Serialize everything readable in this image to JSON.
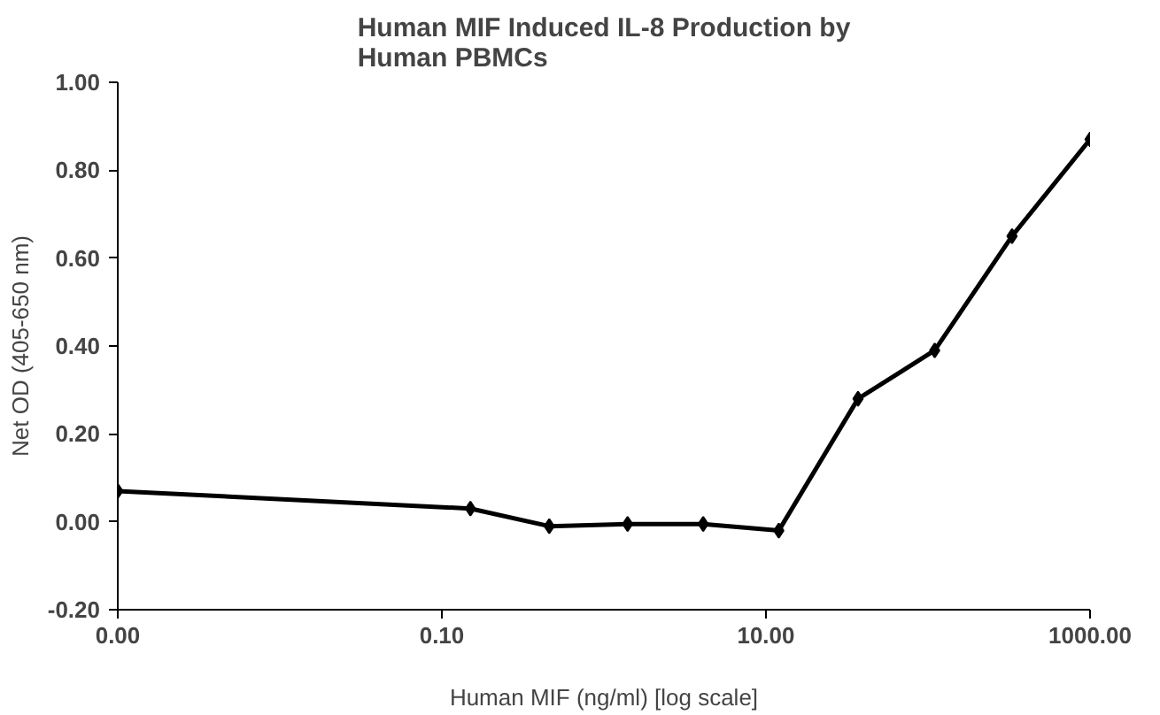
{
  "chart_data": {
    "type": "line",
    "title": "Human MIF Induced IL-8 Production by Human PBMCs",
    "xlabel": "Human MIF (ng/ml) [log scale]",
    "ylabel": "Net OD (405-650 nm)",
    "x": [
      0.001,
      0.15,
      0.46,
      1.4,
      4.1,
      12,
      37,
      110,
      330,
      1000
    ],
    "series": [
      {
        "color": "#000000",
        "values": [
          0.07,
          0.03,
          -0.01,
          -0.005,
          -0.005,
          -0.02,
          0.28,
          0.39,
          0.65,
          0.87
        ]
      }
    ],
    "log": "x",
    "xlim": [
      0.001,
      1000
    ],
    "xticks": [
      {
        "value": 0.001,
        "label": "0.00"
      },
      {
        "value": 0.1,
        "label": "0.10"
      },
      {
        "value": 10,
        "label": "10.00"
      },
      {
        "value": 1000,
        "label": "1000.00"
      }
    ],
    "ylim": [
      -0.2,
      1.0
    ],
    "yticks": [
      {
        "value": -0.2,
        "label": "-0.20"
      },
      {
        "value": 0,
        "label": "0.00"
      },
      {
        "value": 0.2,
        "label": "0.20"
      },
      {
        "value": 0.4,
        "label": "0.40"
      },
      {
        "value": 0.6,
        "label": "0.60"
      },
      {
        "value": 0.8,
        "label": "0.80"
      },
      {
        "value": 1.0,
        "label": "1.00"
      }
    ],
    "grid": false,
    "marker": "diamond",
    "line_style": "solid"
  }
}
